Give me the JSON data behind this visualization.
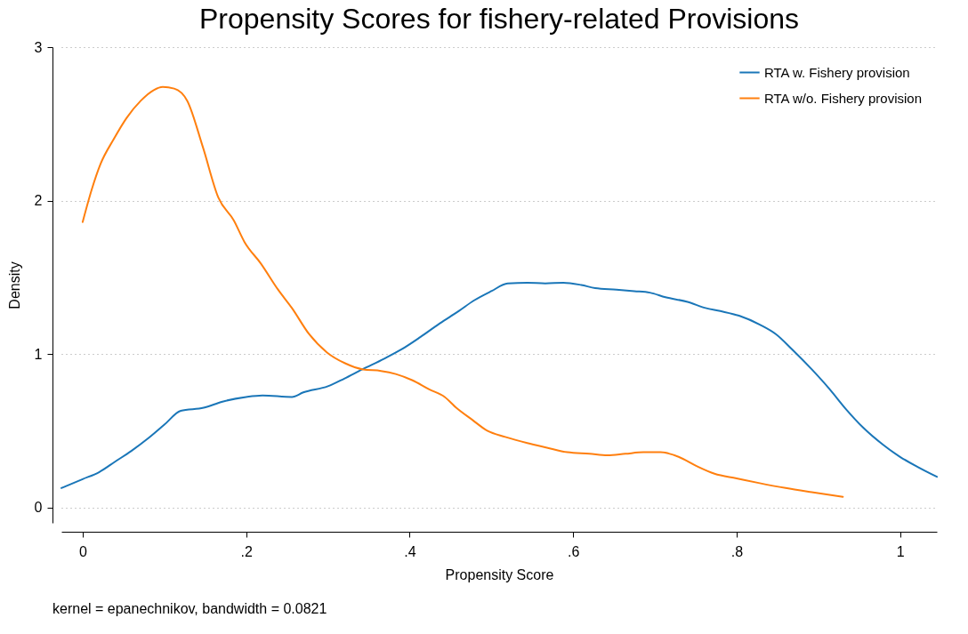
{
  "chart_data": {
    "type": "line",
    "title": "Propensity Scores for fishery-related Provisions",
    "xlabel": "Propensity Score",
    "ylabel": "Density",
    "annotations": [
      "kernel = epanechnikov, bandwidth = 0.0821"
    ],
    "xlim": [
      -0.026,
      1.045
    ],
    "ylim": [
      -0.1,
      3
    ],
    "xticks": [
      {
        "value": 0,
        "label": "0"
      },
      {
        "value": 0.2,
        "label": ".2"
      },
      {
        "value": 0.4,
        "label": ".4"
      },
      {
        "value": 0.6,
        "label": ".6"
      },
      {
        "value": 0.8,
        "label": ".8"
      },
      {
        "value": 1,
        "label": "1"
      }
    ],
    "yticks": [
      0,
      1,
      2,
      3
    ],
    "grid": "y",
    "legend": "top right",
    "line_style": "solid",
    "series": [
      {
        "name": "RTA w. Fishery provision",
        "color": "#1a76b8",
        "x": [
          -0.026,
          0,
          0.02,
          0.04,
          0.06,
          0.08,
          0.1,
          0.12,
          0.148,
          0.171,
          0.2,
          0.22,
          0.256,
          0.27,
          0.3,
          0.32,
          0.342,
          0.369,
          0.39,
          0.413,
          0.437,
          0.46,
          0.479,
          0.5,
          0.52,
          0.544,
          0.566,
          0.588,
          0.61,
          0.627,
          0.653,
          0.675,
          0.694,
          0.713,
          0.74,
          0.762,
          0.78,
          0.803,
          0.829,
          0.848,
          0.868,
          0.892,
          0.914,
          0.934,
          0.955,
          0.979,
          1.0,
          1.023,
          1.045
        ],
        "values": [
          0.127,
          0.185,
          0.23,
          0.3,
          0.37,
          0.45,
          0.54,
          0.63,
          0.65,
          0.69,
          0.72,
          0.73,
          0.72,
          0.75,
          0.79,
          0.84,
          0.9,
          0.97,
          1.03,
          1.11,
          1.2,
          1.28,
          1.35,
          1.41,
          1.46,
          1.465,
          1.46,
          1.465,
          1.45,
          1.43,
          1.42,
          1.41,
          1.4,
          1.37,
          1.34,
          1.3,
          1.28,
          1.25,
          1.19,
          1.13,
          1.03,
          0.9,
          0.77,
          0.64,
          0.52,
          0.41,
          0.33,
          0.26,
          0.2
        ]
      },
      {
        "name": "RTA w/o. Fishery provision",
        "color": "#ff7f0e",
        "x": [
          0,
          0.011,
          0.022,
          0.038,
          0.054,
          0.071,
          0.087,
          0.098,
          0.112,
          0.128,
          0.147,
          0.166,
          0.185,
          0.198,
          0.218,
          0.239,
          0.256,
          0.277,
          0.299,
          0.321,
          0.343,
          0.365,
          0.383,
          0.403,
          0.424,
          0.443,
          0.457,
          0.477,
          0.495,
          0.517,
          0.544,
          0.568,
          0.593,
          0.62,
          0.642,
          0.664,
          0.686,
          0.707,
          0.729,
          0.751,
          0.773,
          0.8,
          0.827,
          0.86,
          0.892,
          0.93
        ],
        "values": [
          1.86,
          2.07,
          2.24,
          2.4,
          2.54,
          2.65,
          2.72,
          2.74,
          2.73,
          2.65,
          2.35,
          2.02,
          1.87,
          1.73,
          1.59,
          1.42,
          1.3,
          1.13,
          1.01,
          0.94,
          0.9,
          0.89,
          0.87,
          0.83,
          0.77,
          0.72,
          0.65,
          0.57,
          0.5,
          0.46,
          0.42,
          0.39,
          0.36,
          0.35,
          0.34,
          0.35,
          0.36,
          0.36,
          0.33,
          0.27,
          0.22,
          0.19,
          0.16,
          0.127,
          0.1,
          0.07
        ]
      }
    ]
  }
}
